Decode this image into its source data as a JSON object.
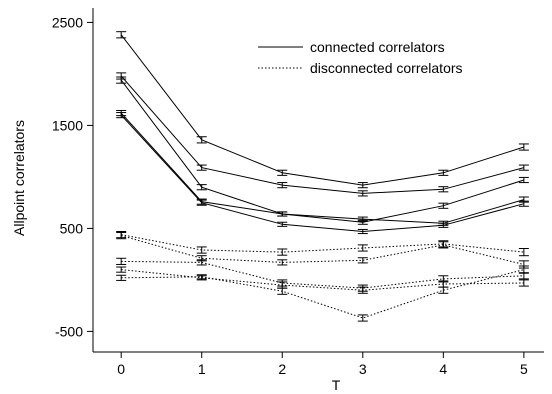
{
  "chart_data": {
    "type": "line",
    "title": "",
    "xlabel": "T",
    "ylabel": "Allpoint correlators",
    "xlim": [
      -0.35,
      5.25
    ],
    "ylim": [
      -700,
      2640
    ],
    "xticks": [
      0,
      1,
      2,
      3,
      4,
      5
    ],
    "yticks": [
      -500,
      500,
      1500,
      2500
    ],
    "x": [
      0,
      1,
      2,
      3,
      4,
      5
    ],
    "grid": false,
    "legend_position": "top-right",
    "series": [
      {
        "name": "connected correlators",
        "style": "solid",
        "values": [
          2380,
          1360,
          1040,
          920,
          1040,
          1290
        ],
        "errors": [
          30,
          30,
          25,
          25,
          25,
          30
        ]
      },
      {
        "name": "",
        "style": "solid",
        "values": [
          1980,
          1090,
          920,
          840,
          880,
          1090
        ],
        "errors": [
          30,
          25,
          25,
          25,
          25,
          25
        ]
      },
      {
        "name": "",
        "style": "solid",
        "values": [
          1940,
          900,
          640,
          560,
          720,
          970
        ],
        "errors": [
          30,
          25,
          20,
          20,
          25,
          25
        ]
      },
      {
        "name": "",
        "style": "solid",
        "values": [
          1620,
          760,
          640,
          590,
          550,
          780
        ],
        "errors": [
          25,
          25,
          20,
          20,
          20,
          25
        ]
      },
      {
        "name": "",
        "style": "solid",
        "values": [
          1600,
          750,
          540,
          470,
          530,
          740
        ],
        "errors": [
          25,
          25,
          20,
          20,
          20,
          25
        ]
      },
      {
        "name": "disconnected correlators",
        "style": "dotted",
        "values": [
          440,
          290,
          270,
          310,
          350,
          270
        ],
        "errors": [
          30,
          30,
          30,
          30,
          30,
          35
        ]
      },
      {
        "name": "",
        "style": "dotted",
        "values": [
          430,
          210,
          170,
          190,
          340,
          150
        ],
        "errors": [
          30,
          25,
          25,
          25,
          30,
          35
        ]
      },
      {
        "name": "",
        "style": "dotted",
        "values": [
          180,
          170,
          -30,
          -80,
          10,
          40
        ],
        "errors": [
          30,
          25,
          30,
          30,
          30,
          30
        ]
      },
      {
        "name": "",
        "style": "dotted",
        "values": [
          100,
          20,
          -50,
          -100,
          -40,
          -30
        ],
        "errors": [
          25,
          20,
          30,
          30,
          30,
          30
        ]
      },
      {
        "name": "",
        "style": "dotted",
        "values": [
          20,
          30,
          -110,
          -370,
          -100,
          100
        ],
        "errors": [
          25,
          20,
          30,
          30,
          30,
          35
        ]
      }
    ]
  }
}
